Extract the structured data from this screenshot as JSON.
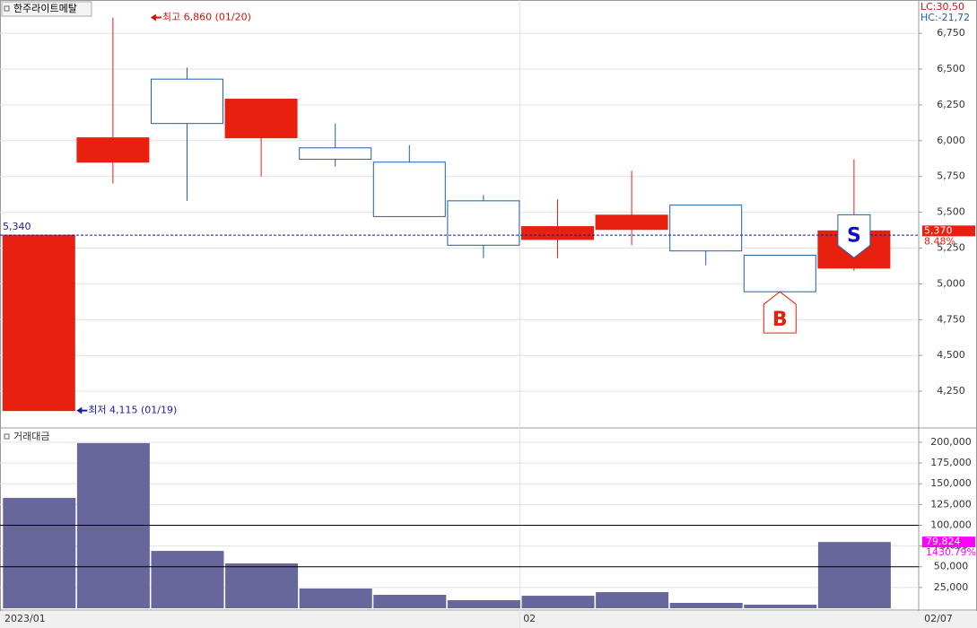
{
  "chart_data": [
    {
      "type": "candlestick",
      "title": "한주라이트메탈",
      "categories": [
        "2023/01",
        null,
        null,
        null,
        null,
        null,
        null,
        "02",
        null,
        null,
        null,
        "02/07"
      ],
      "open": [
        4115,
        5850,
        6430,
        6020,
        5950,
        5850,
        5580,
        5310,
        5380,
        5550,
        5200,
        5110
      ],
      "high": [
        5340,
        6860,
        6510,
        6290,
        6120,
        5970,
        5620,
        5590,
        5790,
        5550,
        5200,
        5870
      ],
      "low": [
        4115,
        5700,
        5580,
        5750,
        5820,
        5470,
        5180,
        5180,
        5270,
        5130,
        4945,
        5090
      ],
      "close": [
        5340,
        6020,
        6120,
        6290,
        5870,
        5470,
        5270,
        5400,
        5480,
        5230,
        4945,
        5370
      ],
      "up_color": "#e8200f",
      "down_color": "#1d5fa8",
      "ylim": [
        4000,
        6970
      ],
      "yticks": [
        {
          "value": 4250,
          "label": "4,250"
        },
        {
          "value": 4500,
          "label": "4,500"
        },
        {
          "value": 4750,
          "label": "4,750"
        },
        {
          "value": 5000,
          "label": "5,000"
        },
        {
          "value": 5250,
          "label": "5,250"
        },
        {
          "value": 5500,
          "label": "5,500"
        },
        {
          "value": 5750,
          "label": "5,750"
        },
        {
          "value": 6000,
          "label": "6,000"
        },
        {
          "value": 6250,
          "label": "6,250"
        },
        {
          "value": 6500,
          "label": "6,500"
        },
        {
          "value": 6750,
          "label": "6,750"
        }
      ],
      "grid": true,
      "annotations": [
        {
          "text": "최고 6,860 (01/20)",
          "value": 6860,
          "color": "#d0140a"
        },
        {
          "text": "최저 4,115 (01/19)",
          "value": 4115,
          "color": "#1a1aa0"
        }
      ],
      "ref_line": {
        "value": 5340,
        "label": "5,340"
      },
      "last_price": {
        "value": 5370,
        "label": "5,370"
      },
      "change_label": "8.48%",
      "signals": [
        null,
        null,
        null,
        null,
        null,
        null,
        null,
        null,
        null,
        null,
        "B",
        "S"
      ],
      "indicators": [
        "LC:30,50",
        "HC:-21,72"
      ]
    },
    {
      "type": "bar",
      "title": "거래대금",
      "values": [
        133000,
        199000,
        69100,
        54000,
        23800,
        16200,
        9700,
        15100,
        19400,
        6500,
        4300,
        79824
      ],
      "color": "#67679b",
      "ylim": [
        0,
        214000
      ],
      "yticks": [
        {
          "value": 25000,
          "label": "25,000"
        },
        {
          "value": 50000,
          "label": "50,000"
        },
        {
          "value": 75000,
          "label": "75,000"
        },
        {
          "value": 100000,
          "label": "100,000"
        },
        {
          "value": 125000,
          "label": "125,000"
        },
        {
          "value": 150000,
          "label": "150,000"
        },
        {
          "value": 175000,
          "label": "175,000"
        },
        {
          "value": 200000,
          "label": "200,000"
        }
      ],
      "grid": true,
      "ref_lines": [
        100000,
        50000
      ],
      "last_value": {
        "value": 79824,
        "label": "79,824"
      },
      "change_label": "1430.79%"
    }
  ]
}
